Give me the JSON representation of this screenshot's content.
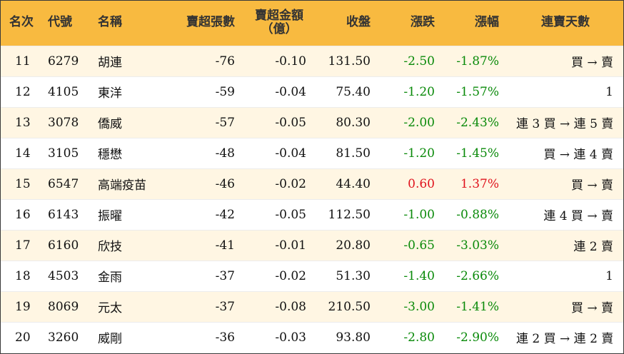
{
  "headers": {
    "rank": "名次",
    "code": "代號",
    "name": "名稱",
    "net_sell_lots": "賣超張數",
    "net_sell_amount": "賣超金額",
    "net_sell_amount_unit": "（億）",
    "close": "收盤",
    "change": "漲跌",
    "change_pct": "漲幅",
    "streak": "連賣天數"
  },
  "colors": {
    "header_bg": "#f8ba40",
    "odd_row_bg": "#fff6e3",
    "even_row_bg": "#ffffff",
    "down": "#0a8a0a",
    "up": "#e0141e"
  },
  "rows": [
    {
      "rank": "11",
      "code": "6279",
      "name": "胡連",
      "lots": "-76",
      "amount": "-0.10",
      "close": "131.50",
      "change": "-2.50",
      "change_pct": "-1.87%",
      "streak": "買 → 賣",
      "direction": "down"
    },
    {
      "rank": "12",
      "code": "4105",
      "name": "東洋",
      "lots": "-59",
      "amount": "-0.04",
      "close": "75.40",
      "change": "-1.20",
      "change_pct": "-1.57%",
      "streak": "1",
      "direction": "down"
    },
    {
      "rank": "13",
      "code": "3078",
      "name": "僑威",
      "lots": "-57",
      "amount": "-0.05",
      "close": "80.30",
      "change": "-2.00",
      "change_pct": "-2.43%",
      "streak": "連 3 買 → 連 5 賣",
      "direction": "down"
    },
    {
      "rank": "14",
      "code": "3105",
      "name": "穩懋",
      "lots": "-48",
      "amount": "-0.04",
      "close": "81.50",
      "change": "-1.20",
      "change_pct": "-1.45%",
      "streak": "買 → 連 4 賣",
      "direction": "down"
    },
    {
      "rank": "15",
      "code": "6547",
      "name": "高端疫苗",
      "lots": "-46",
      "amount": "-0.02",
      "close": "44.40",
      "change": "0.60",
      "change_pct": "1.37%",
      "streak": "買 → 賣",
      "direction": "up"
    },
    {
      "rank": "16",
      "code": "6143",
      "name": "振曜",
      "lots": "-42",
      "amount": "-0.05",
      "close": "112.50",
      "change": "-1.00",
      "change_pct": "-0.88%",
      "streak": "連 4 買 → 賣",
      "direction": "down"
    },
    {
      "rank": "17",
      "code": "6160",
      "name": "欣技",
      "lots": "-41",
      "amount": "-0.01",
      "close": "20.80",
      "change": "-0.65",
      "change_pct": "-3.03%",
      "streak": "連 2 賣",
      "direction": "down"
    },
    {
      "rank": "18",
      "code": "4503",
      "name": "金雨",
      "lots": "-37",
      "amount": "-0.02",
      "close": "51.30",
      "change": "-1.40",
      "change_pct": "-2.66%",
      "streak": "1",
      "direction": "down"
    },
    {
      "rank": "19",
      "code": "8069",
      "name": "元太",
      "lots": "-37",
      "amount": "-0.08",
      "close": "210.50",
      "change": "-3.00",
      "change_pct": "-1.41%",
      "streak": "買 → 賣",
      "direction": "down"
    },
    {
      "rank": "20",
      "code": "3260",
      "name": "威剛",
      "lots": "-36",
      "amount": "-0.03",
      "close": "93.80",
      "change": "-2.80",
      "change_pct": "-2.90%",
      "streak": "連 2 買 → 連 2 賣",
      "direction": "down"
    }
  ]
}
